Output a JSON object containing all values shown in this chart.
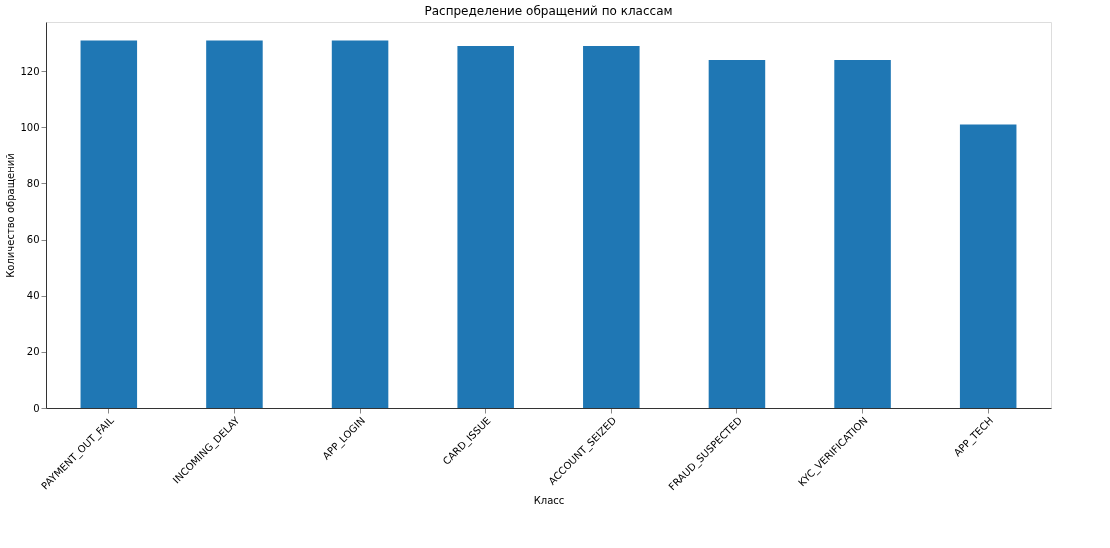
{
  "chart_data": {
    "type": "bar",
    "title": "Распределение обращений по классам",
    "xlabel": "Класс",
    "ylabel": "Количество обращений",
    "categories": [
      "PAYMENT_OUT_FAIL",
      "INCOMING_DELAY",
      "APP_LOGIN",
      "CARD_ISSUE",
      "ACCOUNT_SEIZED",
      "FRAUD_SUSPECTED",
      "KYC_VERIFICATION",
      "APP_TECH"
    ],
    "values": [
      131,
      131,
      131,
      129,
      129,
      124,
      124,
      101
    ],
    "color": "#1f77b4",
    "ylim": [
      0,
      137.55
    ],
    "yticks": [
      0,
      20,
      40,
      60,
      80,
      100,
      120
    ],
    "grid": false
  }
}
